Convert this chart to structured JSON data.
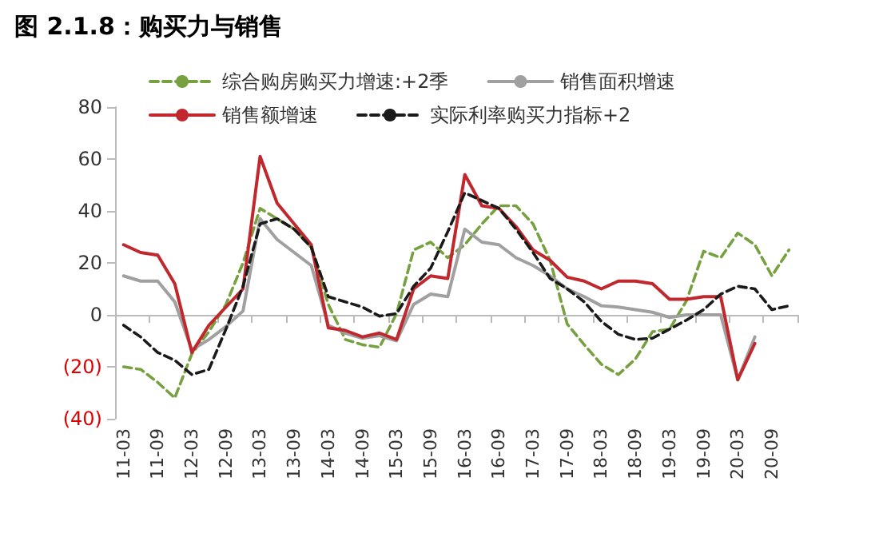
{
  "chart_data": {
    "type": "line",
    "title": "图 2.1.8：购买力与销售",
    "categories": [
      "11-03",
      null,
      "11-09",
      null,
      "12-03",
      null,
      "12-09",
      null,
      "13-03",
      null,
      "13-09",
      null,
      "14-03",
      null,
      "14-09",
      null,
      "15-03",
      null,
      "15-09",
      null,
      "16-03",
      null,
      "16-09",
      null,
      "17-03",
      null,
      "17-09",
      null,
      "18-03",
      null,
      "18-09",
      null,
      "19-03",
      null,
      "19-09",
      null,
      "20-03",
      null,
      "20-09",
      null
    ],
    "ylim": [
      -40,
      80
    ],
    "yticks": [
      {
        "value": -40,
        "label": "(40)"
      },
      {
        "value": -20,
        "label": "(20)"
      },
      0,
      20,
      40,
      60,
      80
    ],
    "legend": "top",
    "marker": "none",
    "series": [
      {
        "name": "综合购房购买力增速:+2季",
        "color": "#77a040",
        "line_style": "dashed",
        "values": [
          -20,
          -21,
          -26,
          -32,
          -15,
          -6.5,
          4,
          20,
          41,
          37,
          33,
          26,
          4,
          -9.5,
          -11.5,
          -12.5,
          0.5,
          25,
          28,
          22,
          27,
          35,
          42,
          42,
          35,
          21,
          -3.5,
          -11.5,
          -19,
          -23,
          -17,
          -6.5,
          -5.5,
          5.5,
          24.5,
          22,
          31.5,
          27,
          15,
          25
        ]
      },
      {
        "name": "销售面积增速",
        "color": "#a0a0a0",
        "line_style": "solid",
        "values": [
          15,
          13,
          13,
          5,
          -13.5,
          -9.5,
          -4.5,
          1.5,
          37,
          29,
          24,
          19,
          -4,
          -7,
          -9,
          -8,
          -10,
          4,
          8,
          7,
          33,
          28,
          27,
          22,
          19,
          15,
          10,
          7,
          3.5,
          3,
          2,
          1,
          -1,
          0,
          0,
          0,
          -25,
          -8.5,
          null,
          null
        ]
      },
      {
        "name": "销售额增速",
        "color": "#c0282d",
        "line_style": "solid",
        "values": [
          27,
          24,
          23,
          12,
          -14.5,
          -4,
          3,
          10,
          61,
          43,
          35,
          27,
          -5,
          -6,
          -8.5,
          -7,
          -9.5,
          10,
          15,
          14,
          54,
          42,
          41,
          34,
          25,
          21,
          14.5,
          13,
          10,
          13,
          13,
          12,
          6,
          6,
          7,
          7,
          -25,
          -11,
          null,
          null
        ]
      },
      {
        "name": "实际利率购买力指标+2",
        "color": "#1a1a1a",
        "line_style": "dashed",
        "values": [
          -4,
          -8.5,
          -14.5,
          -17.5,
          -23,
          -21,
          -5.5,
          11,
          35,
          37,
          33,
          26,
          7,
          5,
          3,
          -0.5,
          0.5,
          11,
          18,
          32,
          47,
          44,
          41,
          33,
          24,
          14,
          10,
          5,
          -2.5,
          -7.5,
          -9.5,
          -9,
          -5.5,
          -2,
          2,
          8,
          11,
          10,
          2,
          3.5
        ]
      }
    ]
  }
}
